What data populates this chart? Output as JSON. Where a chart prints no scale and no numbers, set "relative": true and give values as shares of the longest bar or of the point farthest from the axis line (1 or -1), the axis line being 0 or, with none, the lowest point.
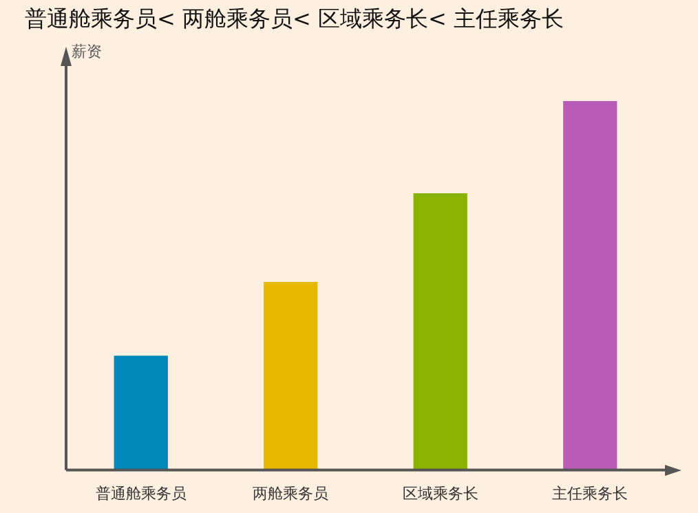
{
  "chart_data": {
    "type": "bar",
    "title": "普通舱乘务员< 两舱乘务员< 区域乘务长< 主任乘务长",
    "ylabel": "薪资",
    "relative": true,
    "categories": [
      "普通舱乘务员",
      "两舱乘务员",
      "区域乘务长",
      "主任乘务长"
    ],
    "values": [
      0.31,
      0.51,
      0.75,
      1
    ],
    "colors": [
      "#0089b8",
      "#e6b800",
      "#8ab300",
      "#bb5bb8"
    ],
    "legend": false
  }
}
